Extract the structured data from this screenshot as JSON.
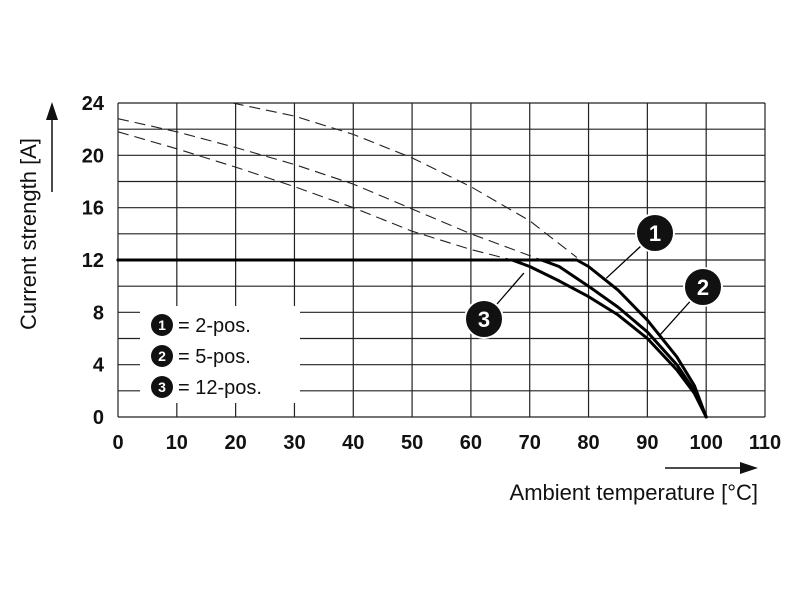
{
  "chart_data": {
    "type": "line",
    "xlabel": "Ambient temperature [°C]",
    "ylabel": "Current strength [A]",
    "xlim": [
      0,
      110
    ],
    "ylim": [
      0,
      24
    ],
    "x_ticks": [
      0,
      10,
      20,
      30,
      40,
      50,
      60,
      70,
      80,
      90,
      100,
      110
    ],
    "y_ticks": [
      0,
      4,
      8,
      12,
      16,
      20,
      24
    ],
    "grid": true,
    "legend_position": "bottom-left",
    "legend": [
      {
        "number": "1",
        "label": "= 2-pos."
      },
      {
        "number": "2",
        "label": "= 5-pos."
      },
      {
        "number": "3",
        "label": "= 12-pos."
      }
    ],
    "series": [
      {
        "id": "1",
        "style": "solid",
        "x": [
          0,
          78,
          80,
          85,
          90,
          95,
          98,
          100
        ],
        "y": [
          12,
          12,
          11.5,
          9.7,
          7.4,
          4.6,
          2.4,
          0
        ]
      },
      {
        "id": "2",
        "style": "solid",
        "x": [
          0,
          72,
          75,
          80,
          85,
          90,
          95,
          98,
          100
        ],
        "y": [
          12,
          12,
          11.5,
          10.0,
          8.4,
          6.5,
          4.0,
          2.0,
          0
        ]
      },
      {
        "id": "3",
        "style": "solid",
        "x": [
          0,
          67,
          70,
          75,
          80,
          85,
          90,
          95,
          98,
          100
        ],
        "y": [
          12,
          12,
          11.5,
          10.4,
          9.2,
          7.8,
          6.0,
          3.6,
          1.8,
          0
        ]
      },
      {
        "id": "1-dashed",
        "style": "dashed",
        "x": [
          19.5,
          30,
          40,
          50,
          60,
          70,
          78
        ],
        "y": [
          24,
          23.0,
          21.6,
          19.8,
          17.6,
          15.0,
          12.2
        ]
      },
      {
        "id": "2-dashed",
        "style": "dashed",
        "x": [
          0,
          10,
          20,
          30,
          40,
          50,
          60,
          72
        ],
        "y": [
          22.8,
          21.8,
          20.6,
          19.3,
          17.8,
          15.9,
          14.0,
          12
        ]
      },
      {
        "id": "3-dashed",
        "style": "dashed",
        "x": [
          0,
          10,
          20,
          30,
          40,
          50,
          60,
          67
        ],
        "y": [
          21.8,
          20.5,
          19.1,
          17.6,
          16.0,
          14.2,
          12.8,
          12
        ]
      }
    ],
    "callouts": [
      {
        "number": "1",
        "target": [
          83,
          10.6
        ]
      },
      {
        "number": "2",
        "target": [
          92,
          6.2
        ]
      },
      {
        "number": "3",
        "target": [
          69,
          11.0
        ]
      }
    ]
  }
}
